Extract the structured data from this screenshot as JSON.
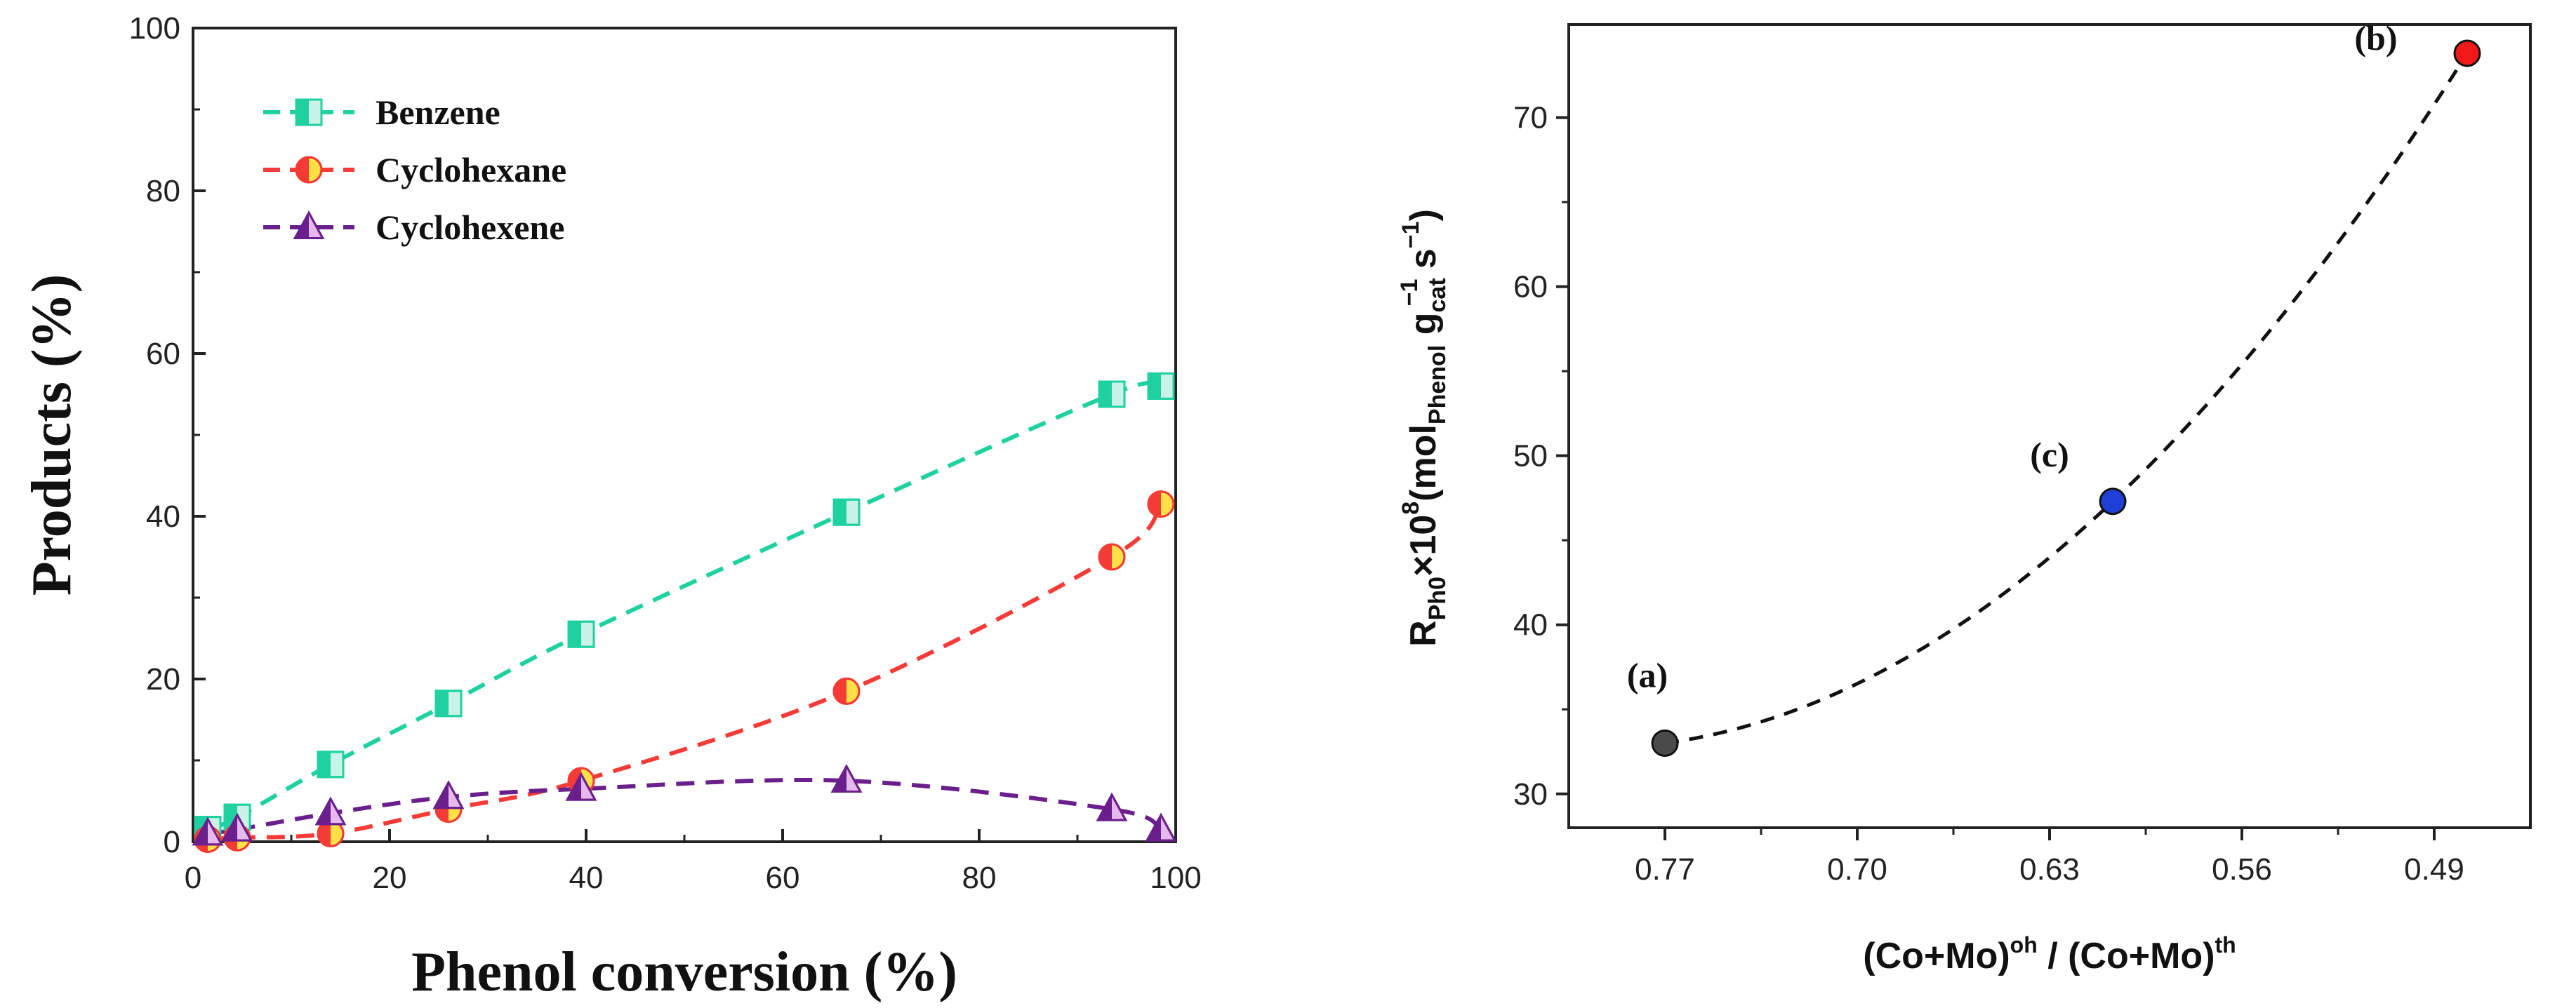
{
  "chart_data": [
    {
      "type": "line",
      "xlabel": "Phenol conversion (%)",
      "ylabel": "Products (%)",
      "xlim": [
        0,
        100
      ],
      "ylim": [
        0,
        100
      ],
      "xticks": [
        "0",
        "20",
        "40",
        "60",
        "80",
        "100"
      ],
      "yticks": [
        "0",
        "20",
        "40",
        "60",
        "80",
        "100"
      ],
      "grid": false,
      "legend_position": "top-left",
      "series": [
        {
          "name": "Benzene",
          "color": "#1fd1a0",
          "marker": "square-half",
          "x": [
            1.5,
            4.5,
            14,
            26,
            39.5,
            66.5,
            93.5,
            98.5
          ],
          "y": [
            1.5,
            3,
            9.5,
            17,
            25.5,
            40.5,
            55,
            56
          ]
        },
        {
          "name": "Cyclohexane",
          "color": "#f53b36",
          "marker": "circle-half",
          "x": [
            1.5,
            4.5,
            14,
            26,
            39.5,
            66.5,
            93.5,
            98.5
          ],
          "y": [
            0.3,
            0.5,
            1,
            4,
            7.5,
            18.5,
            35,
            41.5
          ]
        },
        {
          "name": "Cyclohexene",
          "color": "#6a1f8c",
          "marker": "triangle-half",
          "x": [
            1.5,
            4.5,
            14,
            26,
            39.5,
            66.5,
            93.5,
            98.5
          ],
          "y": [
            1,
            1.5,
            3.5,
            5.5,
            6.5,
            7.5,
            4,
            1.5
          ]
        }
      ]
    },
    {
      "type": "scatter",
      "xlabel_main": "(Co+Mo)",
      "xlabel_sup1": "oh",
      "xlabel_mid": " / (Co+Mo)",
      "xlabel_sup2": "th",
      "ylabel_parts": {
        "r": "R",
        "r_sub": "Ph0",
        "times": "×10",
        "exp": "8",
        "open": "(mol",
        "phenol_sub": "Phenol",
        "g": " g",
        "cat_sub": "cat",
        "inv": "−1",
        "s": " s",
        "s_inv": "−1",
        "close": ")"
      },
      "x_reversed": true,
      "xlim": [
        0.805,
        0.455
      ],
      "ylim": [
        28,
        75.5
      ],
      "xticks": [
        "0.77",
        "0.70",
        "0.63",
        "0.56",
        "0.49"
      ],
      "yticks": [
        "30",
        "40",
        "50",
        "60",
        "70"
      ],
      "grid": false,
      "points": [
        {
          "label": "(a)",
          "x": 0.77,
          "y": 33,
          "color": "#4a4a4a"
        },
        {
          "label": "(c)",
          "x": 0.607,
          "y": 47.3,
          "color": "#1f3fd6"
        },
        {
          "label": "(b)",
          "x": 0.478,
          "y": 73.8,
          "color": "#f01818"
        }
      ],
      "fit_curve": {
        "style": "dashed",
        "color": "#111111"
      }
    }
  ]
}
